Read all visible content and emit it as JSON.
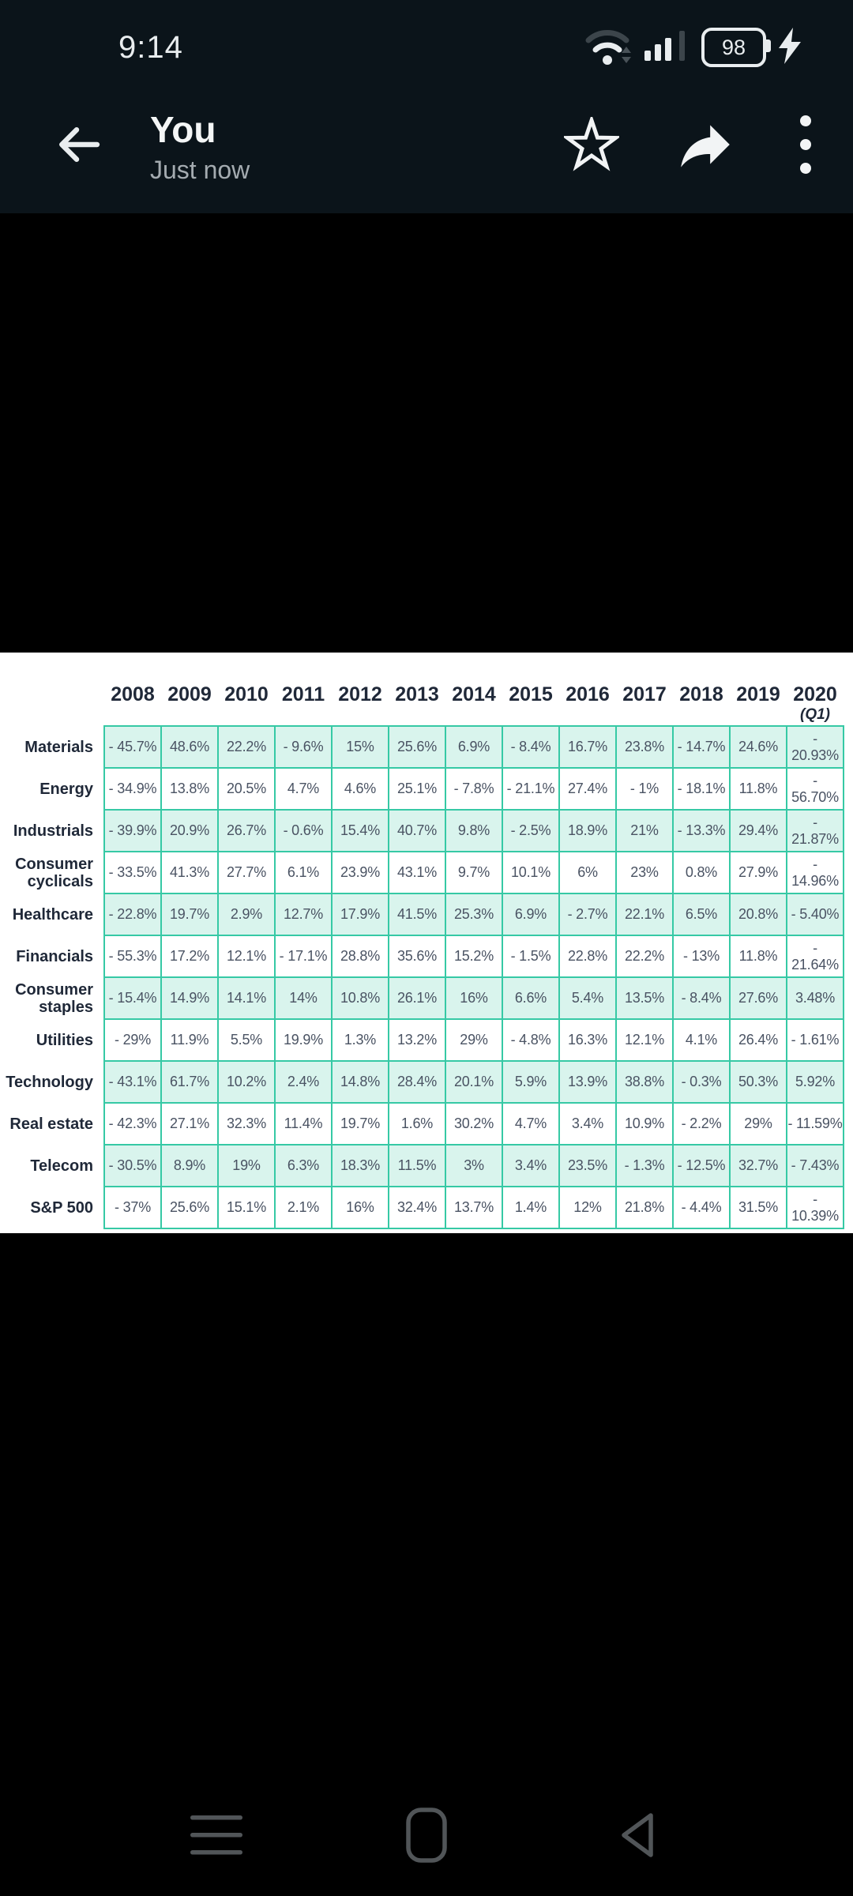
{
  "status_bar": {
    "time": "9:14",
    "battery_level": "98"
  },
  "header": {
    "title": "You",
    "subtitle": "Just now"
  },
  "table": {
    "years": [
      "2008",
      "2009",
      "2010",
      "2011",
      "2012",
      "2013",
      "2014",
      "2015",
      "2016",
      "2017",
      "2018",
      "2019",
      "2020"
    ],
    "last_year_note": "(Q1)",
    "rows": [
      {
        "label": "Materials",
        "values": [
          "- 45.7%",
          "48.6%",
          "22.2%",
          "- 9.6%",
          "15%",
          "25.6%",
          "6.9%",
          "- 8.4%",
          "16.7%",
          "23.8%",
          "- 14.7%",
          "24.6%",
          "- 20.93%"
        ]
      },
      {
        "label": "Energy",
        "values": [
          "- 34.9%",
          "13.8%",
          "20.5%",
          "4.7%",
          "4.6%",
          "25.1%",
          "- 7.8%",
          "- 21.1%",
          "27.4%",
          "- 1%",
          "- 18.1%",
          "11.8%",
          "- 56.70%"
        ]
      },
      {
        "label": "Industrials",
        "values": [
          "- 39.9%",
          "20.9%",
          "26.7%",
          "- 0.6%",
          "15.4%",
          "40.7%",
          "9.8%",
          "- 2.5%",
          "18.9%",
          "21%",
          "- 13.3%",
          "29.4%",
          "- 21.87%"
        ]
      },
      {
        "label": "Consumer cyclicals",
        "values": [
          "- 33.5%",
          "41.3%",
          "27.7%",
          "6.1%",
          "23.9%",
          "43.1%",
          "9.7%",
          "10.1%",
          "6%",
          "23%",
          "0.8%",
          "27.9%",
          "- 14.96%"
        ]
      },
      {
        "label": "Healthcare",
        "values": [
          "- 22.8%",
          "19.7%",
          "2.9%",
          "12.7%",
          "17.9%",
          "41.5%",
          "25.3%",
          "6.9%",
          "- 2.7%",
          "22.1%",
          "6.5%",
          "20.8%",
          "- 5.40%"
        ]
      },
      {
        "label": "Financials",
        "values": [
          "- 55.3%",
          "17.2%",
          "12.1%",
          "- 17.1%",
          "28.8%",
          "35.6%",
          "15.2%",
          "- 1.5%",
          "22.8%",
          "22.2%",
          "- 13%",
          "11.8%",
          "- 21.64%"
        ]
      },
      {
        "label": "Consumer staples",
        "values": [
          "- 15.4%",
          "14.9%",
          "14.1%",
          "14%",
          "10.8%",
          "26.1%",
          "16%",
          "6.6%",
          "5.4%",
          "13.5%",
          "- 8.4%",
          "27.6%",
          "3.48%"
        ]
      },
      {
        "label": "Utilities",
        "values": [
          "- 29%",
          "11.9%",
          "5.5%",
          "19.9%",
          "1.3%",
          "13.2%",
          "29%",
          "- 4.8%",
          "16.3%",
          "12.1%",
          "4.1%",
          "26.4%",
          "- 1.61%"
        ]
      },
      {
        "label": "Technology",
        "values": [
          "- 43.1%",
          "61.7%",
          "10.2%",
          "2.4%",
          "14.8%",
          "28.4%",
          "20.1%",
          "5.9%",
          "13.9%",
          "38.8%",
          "- 0.3%",
          "50.3%",
          "5.92%"
        ]
      },
      {
        "label": "Real estate",
        "values": [
          "- 42.3%",
          "27.1%",
          "32.3%",
          "11.4%",
          "19.7%",
          "1.6%",
          "30.2%",
          "4.7%",
          "3.4%",
          "10.9%",
          "- 2.2%",
          "29%",
          "- 11.59%"
        ]
      },
      {
        "label": "Telecom",
        "values": [
          "- 30.5%",
          "8.9%",
          "19%",
          "6.3%",
          "18.3%",
          "11.5%",
          "3%",
          "3.4%",
          "23.5%",
          "- 1.3%",
          "- 12.5%",
          "32.7%",
          "- 7.43%"
        ]
      },
      {
        "label": "S&P 500",
        "values": [
          "- 37%",
          "25.6%",
          "15.1%",
          "2.1%",
          "16%",
          "32.4%",
          "13.7%",
          "1.4%",
          "12%",
          "21.8%",
          "- 4.4%",
          "31.5%",
          "- 10.39%"
        ]
      }
    ]
  },
  "colors": {
    "topbar": "#0b141a",
    "teal": "#36c9a5",
    "mint": "#d9f4ed",
    "navy": "#1f2838",
    "valueText": "#4a5363",
    "iconWhite": "#e9edef",
    "dimIcon": "#495258",
    "navIcon": "#515558",
    "subtle": "#a4abb0"
  }
}
